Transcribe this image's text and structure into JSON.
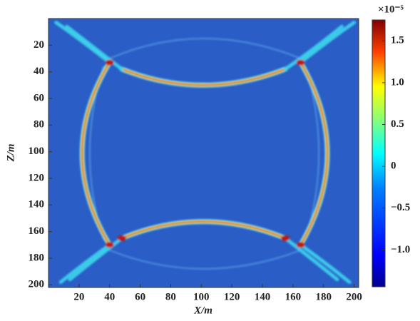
{
  "chart_data": {
    "type": "heatmap",
    "x_label": "X/m",
    "y_label": "Z/m",
    "xlim": [
      0,
      203
    ],
    "xticks": [
      20,
      40,
      60,
      80,
      100,
      120,
      140,
      160,
      180,
      200
    ],
    "ylim": [
      0,
      202
    ],
    "yticks": [
      20,
      40,
      60,
      80,
      100,
      120,
      140,
      160,
      180,
      200
    ],
    "y_inverted": true,
    "colormap": "jet",
    "colorbar": {
      "exponent_label": "×10⁻⁵",
      "lim": [
        -1.44,
        1.75
      ],
      "ticks": [
        {
          "value": -1.0,
          "label": "−1.0"
        },
        {
          "value": -0.5,
          "label": "−0.5"
        },
        0,
        0.5,
        {
          "value": 1.0,
          "label": "1.0"
        },
        1.5
      ]
    }
  }
}
